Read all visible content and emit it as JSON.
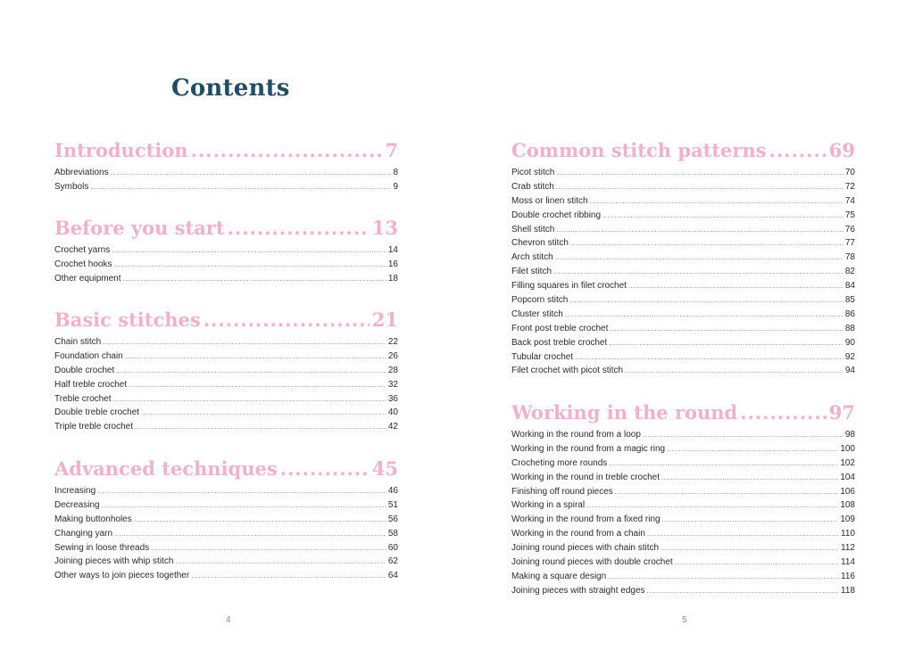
{
  "contents_title": "Contents",
  "left_page": {
    "page_number": "4",
    "sections": [
      {
        "title": "Introduction",
        "page": "7",
        "entries": [
          {
            "label": "Abbreviations",
            "page": "8"
          },
          {
            "label": "Symbols",
            "page": "9"
          }
        ]
      },
      {
        "title": "Before you start",
        "page": "13",
        "entries": [
          {
            "label": "Crochet yarns",
            "page": "14"
          },
          {
            "label": "Crochet hooks",
            "page": "16"
          },
          {
            "label": "Other equipment",
            "page": "18"
          }
        ]
      },
      {
        "title": "Basic stitches",
        "page": "21",
        "entries": [
          {
            "label": "Chain stitch",
            "page": "22"
          },
          {
            "label": "Foundation chain",
            "page": "26"
          },
          {
            "label": "Double crochet",
            "page": "28"
          },
          {
            "label": "Half treble crochet",
            "page": "32"
          },
          {
            "label": "Treble crochet",
            "page": "36"
          },
          {
            "label": "Double treble crochet",
            "page": "40"
          },
          {
            "label": "Triple treble crochet",
            "page": "42"
          }
        ]
      },
      {
        "title": "Advanced techniques",
        "page": "45",
        "entries": [
          {
            "label": "Increasing",
            "page": "46"
          },
          {
            "label": "Decreasing",
            "page": "51"
          },
          {
            "label": "Making buttonholes",
            "page": "56"
          },
          {
            "label": "Changing yarn",
            "page": "58"
          },
          {
            "label": "Sewing in loose threads",
            "page": "60"
          },
          {
            "label": "Joining pieces with whip stitch",
            "page": "62"
          },
          {
            "label": "Other ways to join pieces together",
            "page": "64"
          }
        ]
      }
    ]
  },
  "right_page": {
    "page_number": "5",
    "sections": [
      {
        "title": "Common stitch patterns",
        "page": "69",
        "entries": [
          {
            "label": "Picot stitch",
            "page": "70"
          },
          {
            "label": "Crab stitch",
            "page": "72"
          },
          {
            "label": "Moss or linen stitch",
            "page": "74"
          },
          {
            "label": "Double crochet ribbing",
            "page": "75"
          },
          {
            "label": "Shell stitch",
            "page": "76"
          },
          {
            "label": "Chevron stitch",
            "page": "77"
          },
          {
            "label": "Arch stitch",
            "page": "78"
          },
          {
            "label": "Filet stitch",
            "page": "82"
          },
          {
            "label": "Filling squares in filet crochet",
            "page": "84"
          },
          {
            "label": "Popcorn stitch",
            "page": "85"
          },
          {
            "label": "Cluster stitch",
            "page": "86"
          },
          {
            "label": "Front post treble crochet",
            "page": "88"
          },
          {
            "label": "Back post treble crochet",
            "page": "90"
          },
          {
            "label": "Tubular crochet",
            "page": "92"
          },
          {
            "label": "Filet crochet with picot stitch",
            "page": "94"
          }
        ]
      },
      {
        "title": "Working in the round",
        "page": "97",
        "entries": [
          {
            "label": "Working in the round from a loop",
            "page": "98"
          },
          {
            "label": "Working in the round from a magic ring",
            "page": "100"
          },
          {
            "label": "Crocheting more rounds",
            "page": "102"
          },
          {
            "label": "Working in the round in treble crochet",
            "page": "104"
          },
          {
            "label": "Finishing off round pieces",
            "page": "106"
          },
          {
            "label": "Working in a spiral",
            "page": "108"
          },
          {
            "label": "Working in the round from a fixed ring",
            "page": "109"
          },
          {
            "label": "Working in the round from a chain",
            "page": "110"
          },
          {
            "label": "Joining round pieces with chain stitch",
            "page": "112"
          },
          {
            "label": "Joining round pieces with double crochet",
            "page": "114"
          },
          {
            "label": "Making a square design",
            "page": "116"
          },
          {
            "label": "Joining pieces with straight edges",
            "page": "118"
          }
        ]
      }
    ]
  },
  "colors": {
    "title": "#1f4f66",
    "section_heading": "#f2b0cc",
    "entry_text": "#2a2a2a",
    "page_number": "#8a8a8a"
  }
}
